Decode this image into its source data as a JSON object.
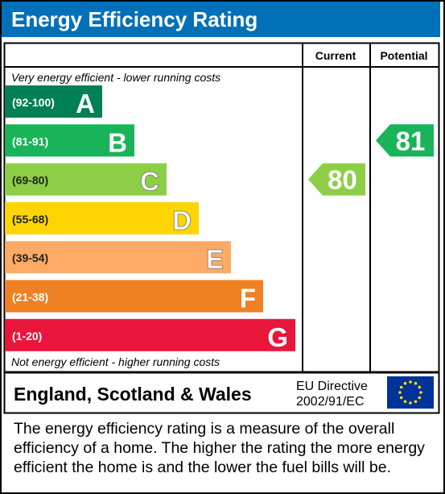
{
  "header": {
    "title": "Energy Efficiency Rating"
  },
  "columns": {
    "current": "Current",
    "potential": "Potential"
  },
  "top_note": "Very energy efficient - lower running costs",
  "bottom_note": "Not energy efficient - higher running costs",
  "footer": {
    "region": "England, Scotland & Wales",
    "directive_line1": "EU Directive",
    "directive_line2": "2002/91/EC",
    "flag_icon": "eu-flag-icon"
  },
  "description": "The energy efficiency rating is a measure of the overall efficiency of a home. The higher the rating the more energy efficient the home is and the lower the fuel bills will be.",
  "chart_data": {
    "type": "bar",
    "categories": [
      "A",
      "B",
      "C",
      "D",
      "E",
      "F",
      "G"
    ],
    "bands": [
      {
        "letter": "A",
        "range": "(92-100)",
        "min": 92,
        "max": 100,
        "color": "#008054"
      },
      {
        "letter": "B",
        "range": "(81-91)",
        "min": 81,
        "max": 91,
        "color": "#19b459"
      },
      {
        "letter": "C",
        "range": "(69-80)",
        "min": 69,
        "max": 80,
        "color": "#8dce46"
      },
      {
        "letter": "D",
        "range": "(55-68)",
        "min": 55,
        "max": 68,
        "color": "#ffd500"
      },
      {
        "letter": "E",
        "range": "(39-54)",
        "min": 39,
        "max": 54,
        "color": "#fcaa65"
      },
      {
        "letter": "F",
        "range": "(21-38)",
        "min": 21,
        "max": 38,
        "color": "#ef8023"
      },
      {
        "letter": "G",
        "range": "(1-20)",
        "min": 1,
        "max": 20,
        "color": "#e9153b"
      }
    ],
    "series": [
      {
        "name": "Current",
        "value": 80,
        "band": "C",
        "color": "#8dce46"
      },
      {
        "name": "Potential",
        "value": 81,
        "band": "B",
        "color": "#19b459"
      }
    ]
  }
}
